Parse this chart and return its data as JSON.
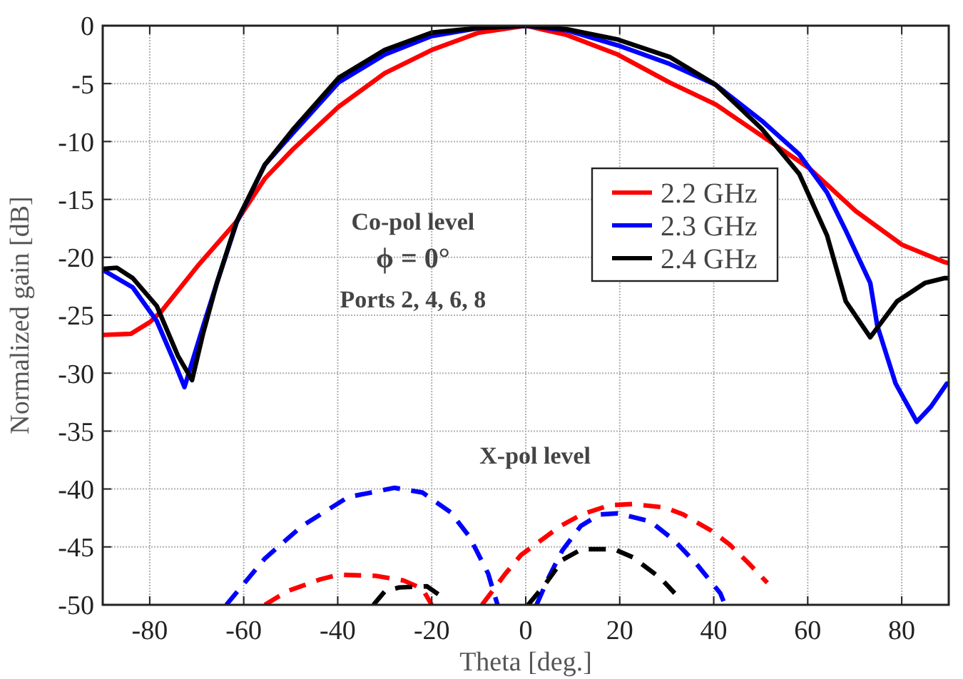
{
  "chart_data": {
    "type": "line",
    "xlabel": "Theta [deg.]",
    "ylabel": "Normalized gain [dB]",
    "xlim": [
      -90,
      90
    ],
    "ylim": [
      -50,
      0
    ],
    "xticks": [
      -80,
      -60,
      -40,
      -20,
      0,
      20,
      40,
      60,
      80
    ],
    "yticks": [
      0,
      -5,
      -10,
      -15,
      -20,
      -25,
      -30,
      -35,
      -40,
      -45,
      -50
    ],
    "grid": true,
    "legend": "right",
    "annotations": [
      "Co-pol level",
      "ϕ  =  0°",
      "Ports 2, 4, 6, 8",
      "X-pol  level"
    ],
    "series": [
      {
        "name": "2.2 GHz",
        "color": "#ff0000",
        "line_style": "solid",
        "x": [
          -90,
          -84,
          -80,
          -77.6,
          -69.5,
          -61.5,
          -55.5,
          -49.6,
          -39.8,
          -30,
          -20,
          -10,
          0,
          8.7,
          19.6,
          30.6,
          40.4,
          50.2,
          60.3,
          70.2,
          80,
          89,
          90
        ],
        "values": [
          -26.7,
          -26.6,
          -25.6,
          -24.7,
          -20.6,
          -16.9,
          -13.2,
          -10.7,
          -7,
          -4.1,
          -2.1,
          -0.6,
          0,
          -0.8,
          -2.5,
          -4.9,
          -6.8,
          -9.5,
          -12.3,
          -16,
          -18.9,
          -20.4,
          -20.5
        ]
      },
      {
        "name": "2.3 GHz",
        "color": "#0000ff",
        "line_style": "solid",
        "x": [
          -90,
          -89.5,
          -83.6,
          -78.5,
          -75,
          -72.6,
          -68.6,
          -65.7,
          -61.5,
          -55.5,
          -49.6,
          -39.8,
          -30,
          -20,
          -10,
          0,
          8.7,
          19.6,
          30.6,
          40.4,
          50.2,
          58.2,
          64.1,
          68.1,
          73.3,
          74.8,
          78.7,
          83.2,
          86.2,
          89.6,
          90
        ],
        "values": [
          -21,
          -21.2,
          -22.6,
          -25.5,
          -28.8,
          -31.2,
          -25.9,
          -22.2,
          -17,
          -12,
          -9.3,
          -4.9,
          -2.5,
          -0.9,
          -0.2,
          0,
          -0.4,
          -1.7,
          -3.3,
          -5.1,
          -8.2,
          -11.1,
          -14.4,
          -17.7,
          -22.2,
          -25.9,
          -30.9,
          -34.2,
          -32.9,
          -30.9,
          -31
        ]
      },
      {
        "name": "2.4 GHz",
        "color": "#000000",
        "line_style": "solid",
        "x": [
          -90,
          -87,
          -83.6,
          -78.5,
          -74,
          -71,
          -68.6,
          -65.7,
          -61.5,
          -55.5,
          -49.6,
          -39.8,
          -30,
          -20,
          -10,
          0,
          8.7,
          19.6,
          30.6,
          40.4,
          50.2,
          58.2,
          64.1,
          68.1,
          73.3,
          79,
          85,
          89,
          90
        ],
        "values": [
          -21,
          -20.9,
          -21.8,
          -24.2,
          -28.5,
          -30.6,
          -26.5,
          -22.2,
          -16.9,
          -12,
          -9,
          -4.5,
          -2.1,
          -0.6,
          -0.2,
          0,
          -0.3,
          -1.2,
          -2.7,
          -5.1,
          -8.9,
          -12.8,
          -18.1,
          -23.8,
          -26.9,
          -23.8,
          -22.2,
          -21.8,
          -21.8
        ]
      },
      {
        "color": "#ff0000",
        "line_style": "dashed",
        "x": [
          -55.5,
          -50.6,
          -43.7,
          -39.8,
          -31.9,
          -26,
          -22,
          -20,
          -15,
          -9.3,
          -4.3,
          -1,
          2,
          7.4,
          11.9,
          17.8,
          22.7,
          29.6,
          33.5,
          39.5,
          43.4,
          47.4,
          51.4
        ],
        "values": [
          -50,
          -48.8,
          -47.8,
          -47.4,
          -47.5,
          -47.9,
          -48.6,
          -50,
          null,
          -50,
          -47.3,
          -45.7,
          -44.8,
          -43.2,
          -42.2,
          -41.4,
          -41.3,
          -41.6,
          -42.2,
          -43.6,
          -44.8,
          -46.4,
          -48.1
        ]
      },
      {
        "color": "#0000ff",
        "line_style": "dashed",
        "x": [
          -63.7,
          -55.5,
          -47.6,
          -37.8,
          -27.9,
          -22,
          -16,
          -12,
          -8,
          -6,
          -2,
          2.3,
          4.8,
          7.8,
          11.7,
          15.7,
          19.6,
          26.5,
          31.5,
          36.4,
          41.4,
          42.4
        ],
        "values": [
          -50,
          -46,
          -43.2,
          -40.7,
          -39.9,
          -40.3,
          -42,
          -44.1,
          -47.3,
          -50,
          null,
          -50,
          -47.7,
          -45.3,
          -43.2,
          -42.2,
          -42.1,
          -42.8,
          -44.4,
          -46.5,
          -49,
          -50
        ]
      },
      {
        "color": "#000000",
        "line_style": "dashed",
        "x": [
          -32.4,
          -29.9,
          -26.9,
          -21,
          -17.5,
          -8,
          0.5,
          4,
          7.9,
          11.9,
          18.8,
          22.8,
          28.7,
          31.7
        ],
        "values": [
          -50,
          -48.8,
          -48.5,
          -48.4,
          -49.4,
          null,
          -50,
          -48.3,
          -46.1,
          -45.2,
          -45.2,
          -45.9,
          -47.7,
          -49
        ]
      }
    ]
  }
}
